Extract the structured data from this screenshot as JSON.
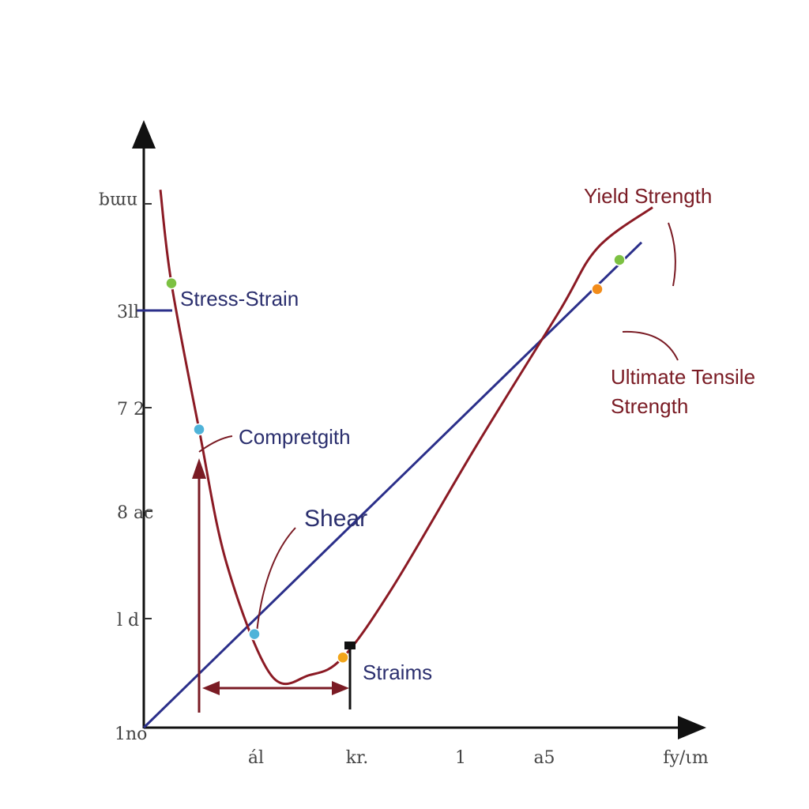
{
  "chart_data": {
    "type": "line",
    "title": "",
    "xlabel": "",
    "ylabel": "",
    "x_tick_labels": [
      "ál",
      "kr.",
      "1",
      "a5",
      "fy/ιm"
    ],
    "y_tick_labels": [
      "nmq",
      "3ll",
      "7 2",
      "8 ac",
      "l d",
      "1no"
    ],
    "xlim": [
      0,
      10
    ],
    "ylim": [
      0,
      10
    ],
    "series": [
      {
        "color": "#8b1a24",
        "x": [
          0.3,
          0.5,
          1.0,
          1.5,
          2.3,
          3.0,
          3.6,
          4.5,
          6.0,
          7.5,
          8.2,
          9.2
        ],
        "y": [
          9.2,
          7.6,
          5.1,
          2.8,
          0.9,
          0.9,
          1.2,
          2.4,
          4.8,
          7.1,
          8.2,
          8.9
        ]
      },
      {
        "color": "#2b2f8a",
        "x": [
          0,
          9.0
        ],
        "y": [
          0,
          8.3
        ]
      }
    ],
    "points": [
      {
        "x": 0.5,
        "y": 7.6,
        "color": "#7cc142"
      },
      {
        "x": 1.0,
        "y": 5.1,
        "color": "#4fb3d9"
      },
      {
        "x": 2.0,
        "y": 1.6,
        "color": "#4fb3d9"
      },
      {
        "x": 3.6,
        "y": 1.2,
        "color": "#f2a51a"
      },
      {
        "x": 8.2,
        "y": 7.5,
        "color": "#f28c1a"
      },
      {
        "x": 8.6,
        "y": 8.0,
        "color": "#7cc142"
      }
    ],
    "annotations": [
      {
        "text": "Stress-Strain",
        "color": "#2b2f6e"
      },
      {
        "text": "Compretgith",
        "color": "#2b2f6e"
      },
      {
        "text": "Shear",
        "color": "#2b2f6e"
      },
      {
        "text": "Straims",
        "color": "#2b2f6e"
      },
      {
        "text": "Yield Strength",
        "color": "#7a1b24"
      },
      {
        "text": "Ultimate Tensile",
        "color": "#7a1b24"
      },
      {
        "text": "Strength",
        "color": "#7a1b24"
      }
    ],
    "grid": false,
    "legend": "none"
  }
}
